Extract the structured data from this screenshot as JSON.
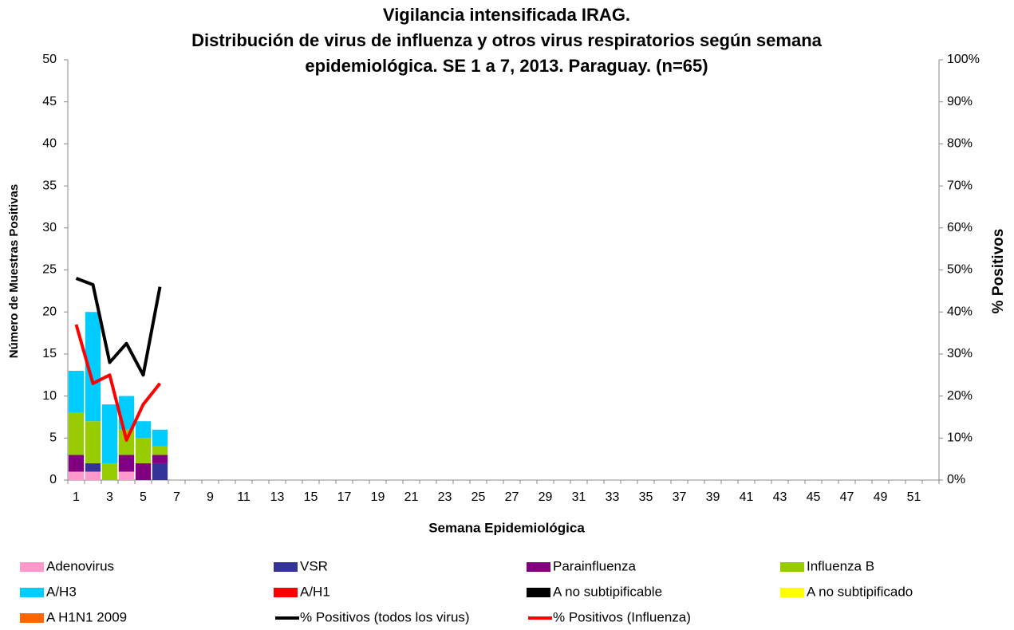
{
  "chart_data": {
    "type": "bar",
    "stacked": true,
    "title": [
      "Vigilancia intensificada IRAG.",
      "Distribución de virus de influenza y otros virus respiratorios según semana",
      "epidemiológica. SE 1 a 7, 2013. Paraguay. (n=65)"
    ],
    "xlabel": "Semana Epidemiológica",
    "ylabel": "Número de Muestras Positivas",
    "y2label": "% Positivos",
    "categories": [
      "1",
      null,
      "3",
      null,
      "5",
      null,
      "7",
      null,
      "9",
      null,
      "11",
      null,
      "13",
      null,
      "15",
      null,
      "17",
      null,
      "19",
      null,
      "21",
      null,
      "23",
      null,
      "25",
      null,
      "27",
      null,
      "29",
      null,
      "31",
      null,
      "33",
      null,
      "35",
      null,
      "37",
      null,
      "39",
      null,
      "41",
      null,
      "43",
      null,
      "45",
      null,
      "47",
      null,
      "49",
      null,
      "51",
      null
    ],
    "ylim": [
      0,
      50
    ],
    "yticks": [
      0,
      5,
      10,
      15,
      20,
      25,
      30,
      35,
      40,
      45,
      50
    ],
    "y2lim": [
      0,
      100
    ],
    "y2ticks": [
      {
        "value": 0,
        "label": "0%"
      },
      {
        "value": 10,
        "label": "10%"
      },
      {
        "value": 20,
        "label": "20%"
      },
      {
        "value": 30,
        "label": "30%"
      },
      {
        "value": 40,
        "label": "40%"
      },
      {
        "value": 50,
        "label": "50%"
      },
      {
        "value": 60,
        "label": "60%"
      },
      {
        "value": 70,
        "label": "70%"
      },
      {
        "value": 80,
        "label": "80%"
      },
      {
        "value": 90,
        "label": "90%"
      },
      {
        "value": 100,
        "label": "100%"
      }
    ],
    "legend": "bottom",
    "series": [
      {
        "name": "Adenovirus",
        "color": "#ff99cc",
        "values": [
          1,
          1,
          0,
          1,
          0,
          0,
          null,
          null,
          null,
          null,
          null,
          null,
          null,
          null,
          null,
          null,
          null,
          null,
          null,
          null,
          null,
          null,
          null,
          null,
          null,
          null,
          null,
          null,
          null,
          null,
          null,
          null,
          null,
          null,
          null,
          null,
          null,
          null,
          null,
          null,
          null,
          null,
          null,
          null,
          null,
          null,
          null,
          null,
          null,
          null,
          null,
          null
        ]
      },
      {
        "name": "VSR",
        "color": "#333399",
        "values": [
          0,
          1,
          0,
          0,
          0,
          2,
          null,
          null,
          null,
          null,
          null,
          null,
          null,
          null,
          null,
          null,
          null,
          null,
          null,
          null,
          null,
          null,
          null,
          null,
          null,
          null,
          null,
          null,
          null,
          null,
          null,
          null,
          null,
          null,
          null,
          null,
          null,
          null,
          null,
          null,
          null,
          null,
          null,
          null,
          null,
          null,
          null,
          null,
          null,
          null,
          null,
          null
        ]
      },
      {
        "name": "Parainfluenza",
        "color": "#800080",
        "values": [
          2,
          0,
          0,
          2,
          2,
          1,
          null,
          null,
          null,
          null,
          null,
          null,
          null,
          null,
          null,
          null,
          null,
          null,
          null,
          null,
          null,
          null,
          null,
          null,
          null,
          null,
          null,
          null,
          null,
          null,
          null,
          null,
          null,
          null,
          null,
          null,
          null,
          null,
          null,
          null,
          null,
          null,
          null,
          null,
          null,
          null,
          null,
          null,
          null,
          null,
          null,
          null
        ]
      },
      {
        "name": "Influenza  B",
        "color": "#99cc00",
        "values": [
          5,
          5,
          2,
          3,
          3,
          1,
          null,
          null,
          null,
          null,
          null,
          null,
          null,
          null,
          null,
          null,
          null,
          null,
          null,
          null,
          null,
          null,
          null,
          null,
          null,
          null,
          null,
          null,
          null,
          null,
          null,
          null,
          null,
          null,
          null,
          null,
          null,
          null,
          null,
          null,
          null,
          null,
          null,
          null,
          null,
          null,
          null,
          null,
          null,
          null,
          null,
          null
        ]
      },
      {
        "name": "A/H3",
        "color": "#00ccff",
        "values": [
          5,
          13,
          7,
          4,
          2,
          2,
          null,
          null,
          null,
          null,
          null,
          null,
          null,
          null,
          null,
          null,
          null,
          null,
          null,
          null,
          null,
          null,
          null,
          null,
          null,
          null,
          null,
          null,
          null,
          null,
          null,
          null,
          null,
          null,
          null,
          null,
          null,
          null,
          null,
          null,
          null,
          null,
          null,
          null,
          null,
          null,
          null,
          null,
          null,
          null,
          null,
          null
        ]
      },
      {
        "name": "A/H1",
        "color": "#ff0000",
        "values": [
          0,
          0,
          0,
          0,
          0,
          0,
          null,
          null,
          null,
          null,
          null,
          null,
          null,
          null,
          null,
          null,
          null,
          null,
          null,
          null,
          null,
          null,
          null,
          null,
          null,
          null,
          null,
          null,
          null,
          null,
          null,
          null,
          null,
          null,
          null,
          null,
          null,
          null,
          null,
          null,
          null,
          null,
          null,
          null,
          null,
          null,
          null,
          null,
          null,
          null,
          null,
          null
        ]
      },
      {
        "name": "A no subtipificable",
        "color": "#000000",
        "values": [
          0,
          0,
          0,
          0,
          0,
          0,
          null,
          null,
          null,
          null,
          null,
          null,
          null,
          null,
          null,
          null,
          null,
          null,
          null,
          null,
          null,
          null,
          null,
          null,
          null,
          null,
          null,
          null,
          null,
          null,
          null,
          null,
          null,
          null,
          null,
          null,
          null,
          null,
          null,
          null,
          null,
          null,
          null,
          null,
          null,
          null,
          null,
          null,
          null,
          null,
          null,
          null
        ]
      },
      {
        "name": "A no subtipificado",
        "color": "#ffff00",
        "values": [
          0,
          0,
          0,
          0,
          0,
          0,
          null,
          null,
          null,
          null,
          null,
          null,
          null,
          null,
          null,
          null,
          null,
          null,
          null,
          null,
          null,
          null,
          null,
          null,
          null,
          null,
          null,
          null,
          null,
          null,
          null,
          null,
          null,
          null,
          null,
          null,
          null,
          null,
          null,
          null,
          null,
          null,
          null,
          null,
          null,
          null,
          null,
          null,
          null,
          null,
          null,
          null
        ]
      },
      {
        "name": "A H1N1 2009",
        "color": "#ff6600",
        "values": [
          0,
          0,
          0,
          0,
          0,
          0,
          null,
          null,
          null,
          null,
          null,
          null,
          null,
          null,
          null,
          null,
          null,
          null,
          null,
          null,
          null,
          null,
          null,
          null,
          null,
          null,
          null,
          null,
          null,
          null,
          null,
          null,
          null,
          null,
          null,
          null,
          null,
          null,
          null,
          null,
          null,
          null,
          null,
          null,
          null,
          null,
          null,
          null,
          null,
          null,
          null,
          null
        ]
      },
      {
        "name": "% Positivos (todos los virus)",
        "color": "#000000",
        "type": "line",
        "axis": "y2",
        "values": [
          48,
          46.5,
          28,
          32.5,
          25,
          46,
          null,
          null,
          null,
          null,
          null,
          null,
          null,
          null,
          null,
          null,
          null,
          null,
          null,
          null,
          null,
          null,
          null,
          null,
          null,
          null,
          null,
          null,
          null,
          null,
          null,
          null,
          null,
          null,
          null,
          null,
          null,
          null,
          null,
          null,
          null,
          null,
          null,
          null,
          null,
          null,
          null,
          null,
          null,
          null,
          null,
          null
        ]
      },
      {
        "name": "% Positivos (Influenza)",
        "color": "#ff0000",
        "type": "line",
        "axis": "y2",
        "values": [
          37,
          23,
          25,
          9.5,
          18,
          23,
          null,
          null,
          null,
          null,
          null,
          null,
          null,
          null,
          null,
          null,
          null,
          null,
          null,
          null,
          null,
          null,
          null,
          null,
          null,
          null,
          null,
          null,
          null,
          null,
          null,
          null,
          null,
          null,
          null,
          null,
          null,
          null,
          null,
          null,
          null,
          null,
          null,
          null,
          null,
          null,
          null,
          null,
          null,
          null,
          null,
          null
        ]
      }
    ]
  }
}
